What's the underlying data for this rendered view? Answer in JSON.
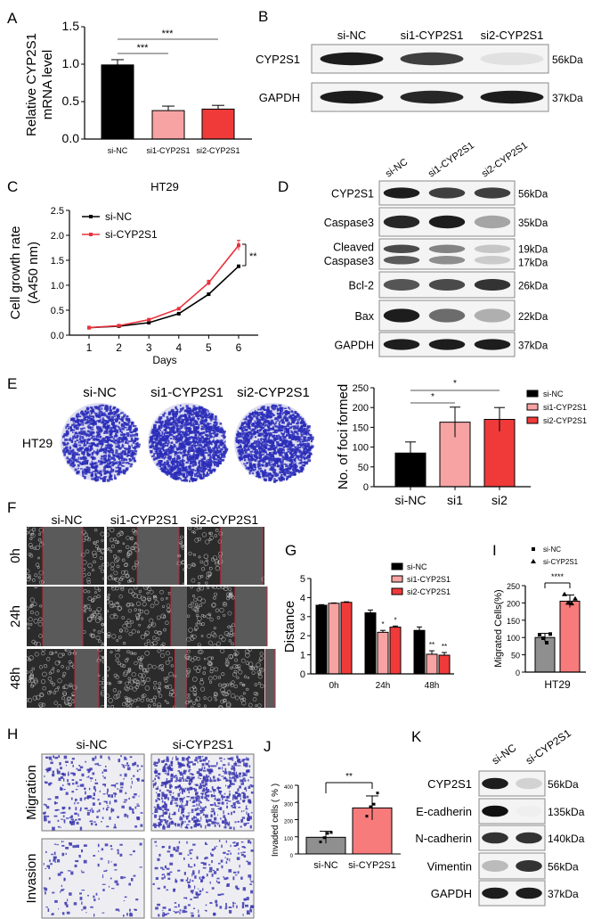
{
  "panel_labels": {
    "A": "A",
    "B": "B",
    "C": "C",
    "D": "D",
    "E": "E",
    "F": "F",
    "G": "G",
    "H": "H",
    "I": "I",
    "J": "J",
    "K": "K"
  },
  "colors": {
    "si_nc": "#000000",
    "si1": "#f7a3a3",
    "si2": "#f03a3a",
    "growth_red": "#e8323c",
    "gray": "#8f8f8f",
    "pink": "#f77b7b",
    "stain": "#2a2db8"
  },
  "blot_b": {
    "lanes": [
      "si-NC",
      "si1-CYP2S1",
      "si2-CYP2S1"
    ],
    "rows": [
      {
        "label": "CYP2S1",
        "kda": "56kDa"
      },
      {
        "label": "GAPDH",
        "kda": "37kDa"
      }
    ]
  },
  "blot_d": {
    "lanes": [
      "si-NC",
      "si1-CYP2S1",
      "si2-CYP2S1"
    ],
    "rows": [
      {
        "label": "CYP2S1",
        "kda": "56kDa"
      },
      {
        "label": "Caspase3",
        "kda": "35kDa"
      },
      {
        "label": "Cleaved",
        "label2": "Caspase3",
        "kda": "19kDa",
        "kda2": "17kDa"
      },
      {
        "label": "Bcl-2",
        "kda": "26kDa"
      },
      {
        "label": "Bax",
        "kda": "22kDa"
      },
      {
        "label": "GAPDH",
        "kda": "37kDa"
      }
    ]
  },
  "panel_e": {
    "lanes": [
      "si-NC",
      "si1-CYP2S1",
      "si2-CYP2S1"
    ],
    "row_label": "HT29"
  },
  "panel_f": {
    "lanes": [
      "si-NC",
      "si1-CYP2S1",
      "si2-CYP2S1"
    ],
    "rows": [
      "0h",
      "24h",
      "48h"
    ]
  },
  "panel_h": {
    "lanes": [
      "si-NC",
      "si-CYP2S1"
    ],
    "rows": [
      "Migration",
      "Invasion"
    ]
  },
  "blot_k": {
    "lanes": [
      "si-NC",
      "si-CYP2S1"
    ],
    "rows": [
      {
        "label": "CYP2S1",
        "kda": "56kDa"
      },
      {
        "label": "E-cadherin",
        "kda": "135kDa"
      },
      {
        "label": "N-cadherin",
        "kda": "140kDa"
      },
      {
        "label": "Vimentin",
        "kda": "56kDa"
      },
      {
        "label": "GAPDH",
        "kda": "37kDa"
      }
    ]
  },
  "chart_data": [
    {
      "id": "A",
      "type": "bar",
      "categories": [
        "si-NC",
        "si1-CYP2S1",
        "si2-CYP2S1"
      ],
      "values": [
        0.99,
        0.38,
        0.4
      ],
      "errors": [
        0.07,
        0.06,
        0.05
      ],
      "ylabel": [
        "Relative CYP2S1",
        "mRNA level"
      ],
      "ylim": [
        0,
        1.5
      ],
      "yticks": [
        "0.0",
        "0.5",
        "1.0",
        "1.5"
      ],
      "significance": [
        {
          "pair": [
            "si-NC",
            "si1-CYP2S1"
          ],
          "label": "***"
        },
        {
          "pair": [
            "si-NC",
            "si2-CYP2S1"
          ],
          "label": "***"
        }
      ]
    },
    {
      "id": "C",
      "type": "line",
      "title": "HT29",
      "xlabel": "Days",
      "ylabel": [
        "Cell growth rate",
        "(A450 nm)"
      ],
      "x": [
        1,
        2,
        3,
        4,
        5,
        6
      ],
      "xticks": [
        "1",
        "2",
        "3",
        "4",
        "5",
        "6"
      ],
      "ylim": [
        0,
        2.5
      ],
      "yticks": [
        "0.0",
        "0.5",
        "1.0",
        "1.5",
        "2.0",
        "2.5"
      ],
      "series": [
        {
          "name": "si-NC",
          "values": [
            0.15,
            0.18,
            0.25,
            0.43,
            0.82,
            1.38
          ],
          "errors": [
            0,
            0,
            0,
            0.01,
            0.02,
            0.02
          ]
        },
        {
          "name": "si-CYP2S1",
          "values": [
            0.15,
            0.19,
            0.31,
            0.53,
            1.05,
            1.8
          ],
          "errors": [
            0,
            0,
            0,
            0.02,
            0.05,
            0.1
          ]
        }
      ],
      "significance": "**",
      "legend": "top-left"
    },
    {
      "id": "E",
      "type": "bar",
      "categories": [
        "si-NC",
        "si1",
        "si2"
      ],
      "legend_entries": [
        "si-NC",
        "si1-CYP2S1",
        "si2-CYP2S1"
      ],
      "values": [
        85,
        163,
        170
      ],
      "errors": [
        28,
        38,
        30
      ],
      "ylabel": "No. of foci formed",
      "ylim": [
        0,
        250
      ],
      "yticks": [
        "0",
        "50",
        "100",
        "150",
        "200",
        "250"
      ],
      "significance": [
        {
          "pair": [
            "si-NC",
            "si1"
          ],
          "label": "*"
        },
        {
          "pair": [
            "si-NC",
            "si2"
          ],
          "label": "*"
        }
      ],
      "legend": "right"
    },
    {
      "id": "G",
      "type": "bar",
      "categories": [
        "0h",
        "24h",
        "48h"
      ],
      "ylabel": "Distance",
      "ylim": [
        0,
        5
      ],
      "yticks": [
        "0",
        "1",
        "2",
        "3",
        "4",
        "5"
      ],
      "series": [
        {
          "name": "si-NC",
          "values": [
            3.6,
            3.2,
            2.28
          ],
          "errors": [
            0.03,
            0.15,
            0.18
          ]
        },
        {
          "name": "si1-CYP2S1",
          "values": [
            3.7,
            2.18,
            1.03
          ],
          "errors": [
            0.02,
            0.1,
            0.18
          ]
        },
        {
          "name": "si2-CYP2S1",
          "values": [
            3.75,
            2.45,
            0.98
          ],
          "errors": [
            0.03,
            0.06,
            0.14
          ]
        }
      ],
      "annotations": [
        [
          "",
          "",
          ""
        ],
        [
          "",
          "*",
          "*"
        ],
        [
          "",
          "**",
          "**"
        ]
      ],
      "legend": "top-right"
    },
    {
      "id": "I",
      "type": "bar",
      "categories": [
        "HT29"
      ],
      "ylabel": "Migrated Cells(%)",
      "ylim": [
        0,
        250
      ],
      "yticks": [
        "0",
        "50",
        "100",
        "150",
        "200",
        "250"
      ],
      "series": [
        {
          "name": "si-NC",
          "values": [
            100
          ],
          "errors": [
            12
          ],
          "points": [
            108,
            98,
            85,
            110
          ]
        },
        {
          "name": "si-CYP2S1",
          "values": [
            205
          ],
          "errors": [
            18
          ],
          "points": [
            225,
            200,
            198,
            212
          ]
        }
      ],
      "significance": "****",
      "legend": "top"
    },
    {
      "id": "J",
      "type": "bar",
      "categories": [
        "si-NC",
        "si-CYP2S1"
      ],
      "values": [
        97,
        268
      ],
      "errors": [
        35,
        70
      ],
      "points": [
        [
          70,
          95,
          120,
          125
        ],
        [
          220,
          275,
          290,
          355
        ]
      ],
      "ylabel": "Invaded cells ( % )",
      "ylim": [
        0,
        400
      ],
      "yticks": [
        "0",
        "100",
        "200",
        "300",
        "400"
      ],
      "significance": "**"
    }
  ]
}
